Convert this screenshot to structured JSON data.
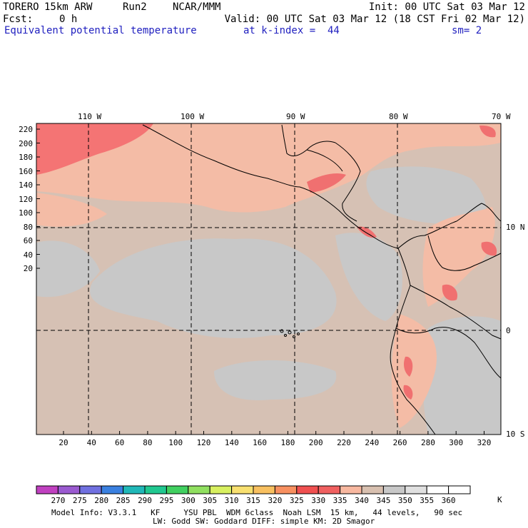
{
  "header": {
    "model": "TORERO",
    "resolution": "15km ARW",
    "run": "Run2",
    "org": "NCAR/MMM",
    "init": "Init: 00 UTC Sat 03 Mar 12",
    "fcst_label": "Fcst:",
    "fcst_value": "0 h",
    "valid": "Valid: 00 UTC Sat 03 Mar 12 (18 CST Fri 02 Mar 12)",
    "field": "Equivalent potential temperature",
    "level": "at k-index =  44",
    "smooth": "sm= 2"
  },
  "map": {
    "lon_labels": [
      "110 W",
      "100 W",
      "90 W",
      "80 W",
      "70 W"
    ],
    "lat_labels": [
      "10 N",
      "0",
      "10 S"
    ],
    "y_ticks": [
      "220",
      "200",
      "180",
      "160",
      "140",
      "120",
      "100",
      "80",
      "60",
      "40",
      "20"
    ],
    "x_ticks": [
      "20",
      "40",
      "60",
      "80",
      "100",
      "120",
      "140",
      "160",
      "180",
      "200",
      "220",
      "240",
      "260",
      "280",
      "300",
      "320"
    ]
  },
  "colorbar": {
    "labels": [
      "270",
      "275",
      "280",
      "285",
      "290",
      "295",
      "300",
      "305",
      "310",
      "315",
      "320",
      "325",
      "330",
      "335",
      "340",
      "345",
      "350",
      "355",
      "360"
    ],
    "unit": "K",
    "colors": [
      "#c040c0",
      "#9a5ad0",
      "#7070e0",
      "#3a80e0",
      "#20b8b8",
      "#20c890",
      "#40d060",
      "#90e060",
      "#d8f060",
      "#f8e070",
      "#f8c060",
      "#f89060",
      "#f05050",
      "#f06060",
      "#f8b8a0",
      "#d8c0b0",
      "#c8c8c8",
      "#e0e0e0",
      "#ffffff"
    ]
  },
  "footer": {
    "line1": "Model Info: V3.3.1   KF     YSU PBL  WDM 6class  Noah LSM  15 km,   44 levels,   90 sec",
    "line2": "LW: Godd SW: Goddard DIFF: simple KM: 2D Smagor"
  }
}
